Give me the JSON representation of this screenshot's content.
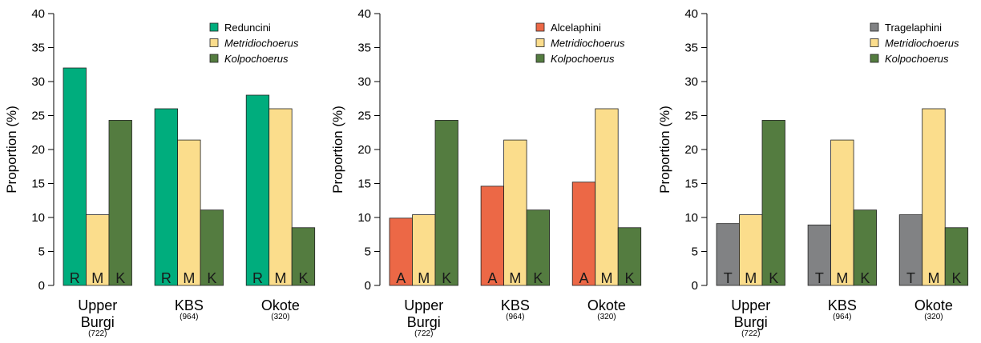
{
  "colors": {
    "Reduncini": "#00ad7d",
    "Alcelaphini": "#ec6846",
    "Tragelaphini": "#818284",
    "Metridiochoerus": "#fbdd8c",
    "Kolpochoerus": "#547c40"
  },
  "chart_data": [
    {
      "type": "bar",
      "ylabel": "Proportion (%)",
      "ylim": [
        0,
        40
      ],
      "yticks": [
        "0",
        "5",
        "10",
        "15",
        "20",
        "25",
        "30",
        "35",
        "40"
      ],
      "categories": [
        {
          "label": [
            "Upper",
            "Burgi"
          ],
          "n": "(722)"
        },
        {
          "label": [
            "KBS"
          ],
          "n": "(964)"
        },
        {
          "label": [
            "Okote"
          ],
          "n": "(320)"
        }
      ],
      "series": [
        {
          "name": "Reduncini",
          "italic": false,
          "letter": "R",
          "values": [
            32.0,
            26.0,
            28.0
          ]
        },
        {
          "name": "Metridiochoerus",
          "italic": true,
          "letter": "M",
          "values": [
            10.4,
            21.4,
            26.0
          ]
        },
        {
          "name": "Kolpochoerus",
          "italic": true,
          "letter": "K",
          "values": [
            24.3,
            11.1,
            8.5
          ]
        }
      ],
      "legend": "top-right"
    },
    {
      "type": "bar",
      "ylabel": "Proportion (%)",
      "ylim": [
        0,
        40
      ],
      "yticks": [
        "0",
        "5",
        "10",
        "15",
        "20",
        "25",
        "30",
        "35",
        "40"
      ],
      "categories": [
        {
          "label": [
            "Upper",
            "Burgi"
          ],
          "n": "(722)"
        },
        {
          "label": [
            "KBS"
          ],
          "n": "(964)"
        },
        {
          "label": [
            "Okote"
          ],
          "n": "(320)"
        }
      ],
      "series": [
        {
          "name": "Alcelaphini",
          "italic": false,
          "letter": "A",
          "values": [
            9.9,
            14.6,
            15.2
          ]
        },
        {
          "name": "Metridiochoerus",
          "italic": true,
          "letter": "M",
          "values": [
            10.4,
            21.4,
            26.0
          ]
        },
        {
          "name": "Kolpochoerus",
          "italic": true,
          "letter": "K",
          "values": [
            24.3,
            11.1,
            8.5
          ]
        }
      ],
      "legend": "top-right"
    },
    {
      "type": "bar",
      "ylabel": "Proportion (%)",
      "ylim": [
        0,
        40
      ],
      "yticks": [
        "0",
        "5",
        "10",
        "15",
        "20",
        "25",
        "30",
        "35",
        "40"
      ],
      "categories": [
        {
          "label": [
            "Upper",
            "Burgi"
          ],
          "n": "(722)"
        },
        {
          "label": [
            "KBS"
          ],
          "n": "(964)"
        },
        {
          "label": [
            "Okote"
          ],
          "n": "(320)"
        }
      ],
      "series": [
        {
          "name": "Tragelaphini",
          "italic": false,
          "letter": "T",
          "values": [
            9.1,
            8.9,
            10.4
          ]
        },
        {
          "name": "Metridiochoerus",
          "italic": true,
          "letter": "M",
          "values": [
            10.4,
            21.4,
            26.0
          ]
        },
        {
          "name": "Kolpochoerus",
          "italic": true,
          "letter": "K",
          "values": [
            24.3,
            11.1,
            8.5
          ]
        }
      ],
      "legend": "top-right"
    }
  ]
}
